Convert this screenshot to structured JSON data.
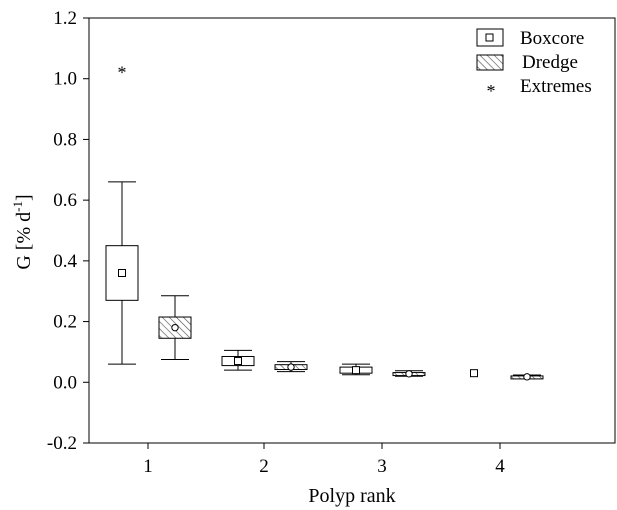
{
  "chart_data": {
    "type": "box",
    "xlabel": "Polyp rank",
    "ylabel": "G [% d",
    "ylabel_sup": "-1",
    "ylabel_end": "]",
    "ylim": [
      -0.2,
      1.2
    ],
    "yticks": [
      "-0.2",
      "0.0",
      "0.2",
      "0.4",
      "0.6",
      "0.8",
      "1.0",
      "1.2"
    ],
    "categories": [
      "1",
      "2",
      "3",
      "4"
    ],
    "grid": false,
    "legend": {
      "position": "top-right",
      "extremes_label": "Extremes"
    },
    "series": [
      {
        "name": "Boxcore",
        "fill": "#ffffff",
        "marker": "square",
        "boxes": [
          {
            "category": "1",
            "min": 0.06,
            "q1": 0.27,
            "median": 0.36,
            "q3": 0.45,
            "max": 0.66
          },
          {
            "category": "2",
            "min": 0.04,
            "q1": 0.055,
            "median": 0.07,
            "q3": 0.085,
            "max": 0.105
          },
          {
            "category": "3",
            "min": 0.025,
            "q1": 0.03,
            "median": 0.04,
            "q3": 0.05,
            "max": 0.06
          },
          {
            "category": "4",
            "min": 0.03,
            "q1": 0.03,
            "median": 0.03,
            "q3": 0.03,
            "max": 0.03
          }
        ],
        "extremes": [
          {
            "category": "1",
            "value": 1.03
          }
        ]
      },
      {
        "name": "Dredge",
        "fill": "hatched",
        "marker": "circle",
        "boxes": [
          {
            "category": "1",
            "min": 0.075,
            "q1": 0.145,
            "median": 0.18,
            "q3": 0.215,
            "max": 0.285
          },
          {
            "category": "2",
            "min": 0.035,
            "q1": 0.042,
            "median": 0.05,
            "q3": 0.058,
            "max": 0.068
          },
          {
            "category": "3",
            "min": 0.02,
            "q1": 0.024,
            "median": 0.028,
            "q3": 0.032,
            "max": 0.038
          },
          {
            "category": "4",
            "min": 0.012,
            "q1": 0.015,
            "median": 0.018,
            "q3": 0.021,
            "max": 0.024
          }
        ],
        "extremes": []
      }
    ]
  }
}
